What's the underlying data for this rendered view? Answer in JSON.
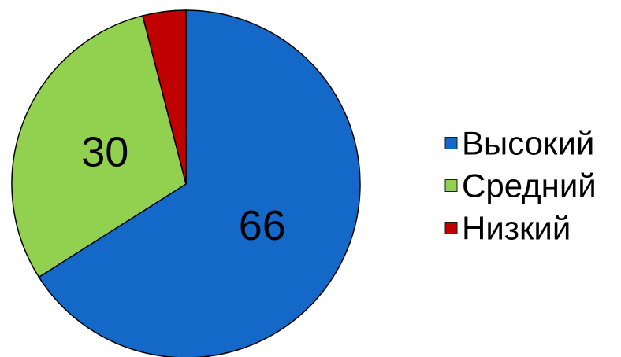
{
  "chart_data": {
    "type": "pie",
    "title": "",
    "categories": [
      "Высокий",
      "Средний",
      "Низкий"
    ],
    "values": [
      66,
      30,
      4
    ],
    "data_labels": [
      "66",
      "30",
      ""
    ],
    "colors": [
      "#1368c8",
      "#92d050",
      "#c00000"
    ],
    "start": "12 o'clock, clockwise",
    "legend_position": "right"
  }
}
